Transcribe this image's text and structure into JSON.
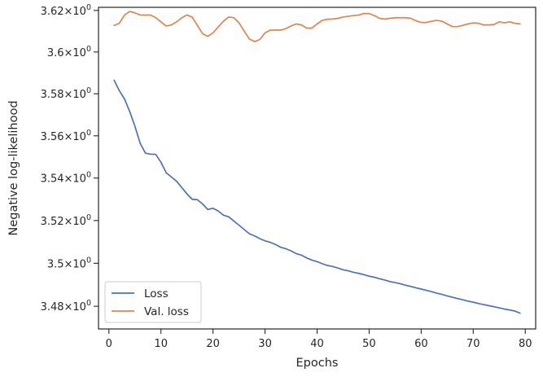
{
  "chart_data": {
    "type": "line",
    "title": "",
    "xlabel": "Epochs",
    "ylabel": "Negative log-likelihood",
    "xlim": [
      -2,
      82
    ],
    "ylim": [
      3.4695,
      3.6215
    ],
    "x_ticks": [
      0,
      10,
      20,
      30,
      40,
      50,
      60,
      70,
      80
    ],
    "y_ticks": [
      {
        "value": 3.48,
        "label": "3.48",
        "base": "×10",
        "exp": "0"
      },
      {
        "value": 3.5,
        "label": "3.5",
        "base": "×10",
        "exp": "0"
      },
      {
        "value": 3.52,
        "label": "3.52",
        "base": "×10",
        "exp": "0"
      },
      {
        "value": 3.54,
        "label": "3.54",
        "base": "×10",
        "exp": "0"
      },
      {
        "value": 3.56,
        "label": "3.56",
        "base": "×10",
        "exp": "0"
      },
      {
        "value": 3.58,
        "label": "3.58",
        "base": "×10",
        "exp": "0"
      },
      {
        "value": 3.6,
        "label": "3.6",
        "base": "×10",
        "exp": "0"
      },
      {
        "value": 3.62,
        "label": "3.62",
        "base": "×10",
        "exp": "0"
      }
    ],
    "y_scale": "log",
    "grid": false,
    "legend_position": "lower-left",
    "x": [
      1,
      2,
      3,
      4,
      5,
      6,
      7,
      8,
      9,
      10,
      11,
      12,
      13,
      14,
      15,
      16,
      17,
      18,
      19,
      20,
      21,
      22,
      23,
      24,
      25,
      26,
      27,
      28,
      29,
      30,
      31,
      32,
      33,
      34,
      35,
      36,
      37,
      38,
      39,
      40,
      41,
      42,
      43,
      44,
      45,
      46,
      47,
      48,
      49,
      50,
      51,
      52,
      53,
      54,
      55,
      56,
      57,
      58,
      59,
      60,
      61,
      62,
      63,
      64,
      65,
      66,
      67,
      68,
      69,
      70,
      71,
      72,
      73,
      74,
      75,
      76,
      77,
      78,
      79
    ],
    "series": [
      {
        "name": "Loss",
        "color": "#4c72b0",
        "values": [
          3.5865,
          3.5815,
          3.5775,
          3.5715,
          3.5645,
          3.5565,
          3.5518,
          3.5513,
          3.5512,
          3.5475,
          3.5425,
          3.5405,
          3.5385,
          3.5355,
          3.5325,
          3.53,
          3.5298,
          3.5278,
          3.5252,
          3.5258,
          3.5245,
          3.5225,
          3.5218,
          3.5198,
          3.5178,
          3.5158,
          3.5138,
          3.5128,
          3.5115,
          3.5105,
          3.5098,
          3.5088,
          3.5075,
          3.5068,
          3.5058,
          3.5045,
          3.5038,
          3.5025,
          3.5015,
          3.5008,
          3.4998,
          3.499,
          3.4985,
          3.4978,
          3.497,
          3.4965,
          3.4958,
          3.4953,
          3.4947,
          3.494,
          3.4935,
          3.4928,
          3.4922,
          3.4915,
          3.491,
          3.4905,
          3.4898,
          3.4892,
          3.4886,
          3.488,
          3.4874,
          3.4868,
          3.4861,
          3.4855,
          3.4848,
          3.4842,
          3.4836,
          3.483,
          3.4824,
          3.4819,
          3.4813,
          3.4808,
          3.4803,
          3.4798,
          3.4793,
          3.4787,
          3.4783,
          3.4778,
          3.4768
        ]
      },
      {
        "name": "Val. loss",
        "color": "#dd8452",
        "values": [
          3.6128,
          3.6138,
          3.6178,
          3.6195,
          3.6188,
          3.6178,
          3.6178,
          3.6178,
          3.6165,
          3.6145,
          3.6125,
          3.613,
          3.6145,
          3.6165,
          3.6178,
          3.6168,
          3.6128,
          3.6088,
          3.6075,
          3.6092,
          3.612,
          3.6148,
          3.6168,
          3.6165,
          3.614,
          3.61,
          3.6062,
          3.605,
          3.606,
          3.6092,
          3.6105,
          3.6105,
          3.6105,
          3.6112,
          3.6125,
          3.6135,
          3.613,
          3.6115,
          3.6115,
          3.6135,
          3.6152,
          3.6158,
          3.6158,
          3.6162,
          3.6168,
          3.6172,
          3.6175,
          3.6178,
          3.6185,
          3.6185,
          3.6175,
          3.6162,
          3.6158,
          3.6162,
          3.6165,
          3.6165,
          3.6165,
          3.6162,
          3.615,
          3.6142,
          3.6142,
          3.6148,
          3.6152,
          3.6148,
          3.6135,
          3.6122,
          3.6122,
          3.6128,
          3.6135,
          3.614,
          3.6138,
          3.613,
          3.613,
          3.6132,
          3.6145,
          3.614,
          3.6145,
          3.6138,
          3.6135
        ]
      }
    ]
  }
}
